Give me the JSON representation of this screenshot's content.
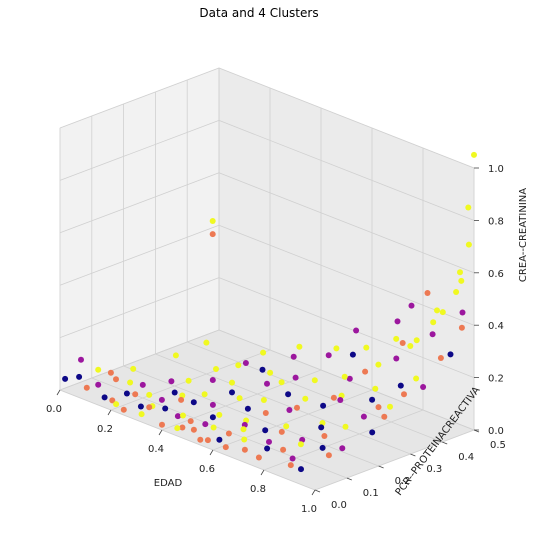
{
  "chart_data": {
    "type": "scatter",
    "projection": "3d",
    "title": "Data and 4 Clusters",
    "xlabel": "EDAD",
    "ylabel": "PCR--PROTEINACREACTIVA",
    "zlabel": "CREA--CREATININA",
    "xlim": [
      0,
      1
    ],
    "ylim": [
      0,
      0.5
    ],
    "zlim": [
      0,
      1
    ],
    "x_ticks": [
      "0.0",
      "0.2",
      "0.4",
      "0.6",
      "0.8",
      "1.0"
    ],
    "y_ticks": [
      "0.0",
      "0.1",
      "0.2",
      "0.3",
      "0.4",
      "0.5"
    ],
    "z_ticks": [
      "0.0",
      "0.2",
      "0.4",
      "0.6",
      "0.8",
      "1.0"
    ],
    "grid": true,
    "colormap": "plasma",
    "cluster_colors": [
      "#0d0887",
      "#9c179e",
      "#ed7953",
      "#f0f921"
    ],
    "series": [
      {
        "cluster": 0,
        "color": "#0d0887",
        "points": [
          [
            0.02,
            0.0,
            0.05
          ],
          [
            0.05,
            0.02,
            0.06
          ],
          [
            0.15,
            0.02,
            0.02
          ],
          [
            0.2,
            0.05,
            0.04
          ],
          [
            0.28,
            0.03,
            0.03
          ],
          [
            0.3,
            0.12,
            0.05
          ],
          [
            0.35,
            0.05,
            0.04
          ],
          [
            0.4,
            0.1,
            0.06
          ],
          [
            0.45,
            0.18,
            0.08
          ],
          [
            0.5,
            0.08,
            0.05
          ],
          [
            0.55,
            0.15,
            0.07
          ],
          [
            0.6,
            0.02,
            0.03
          ],
          [
            0.62,
            0.22,
            0.12
          ],
          [
            0.68,
            0.1,
            0.06
          ],
          [
            0.72,
            0.25,
            0.1
          ],
          [
            0.75,
            0.05,
            0.04
          ],
          [
            0.8,
            0.18,
            0.08
          ],
          [
            0.85,
            0.3,
            0.15
          ],
          [
            0.88,
            0.12,
            0.06
          ],
          [
            0.9,
            0.35,
            0.2
          ],
          [
            0.92,
            0.02,
            0.04
          ],
          [
            0.95,
            0.22,
            0.1
          ],
          [
            0.97,
            0.45,
            0.3
          ],
          [
            0.42,
            0.3,
            0.1
          ],
          [
            0.65,
            0.4,
            0.2
          ]
        ]
      },
      {
        "cluster": 1,
        "color": "#9c179e",
        "points": [
          [
            0.02,
            0.05,
            0.1
          ],
          [
            0.1,
            0.04,
            0.04
          ],
          [
            0.2,
            0.1,
            0.05
          ],
          [
            0.25,
            0.15,
            0.06
          ],
          [
            0.3,
            0.08,
            0.04
          ],
          [
            0.35,
            0.2,
            0.08
          ],
          [
            0.4,
            0.05,
            0.03
          ],
          [
            0.45,
            0.12,
            0.06
          ],
          [
            0.5,
            0.25,
            0.1
          ],
          [
            0.52,
            0.04,
            0.05
          ],
          [
            0.55,
            0.3,
            0.12
          ],
          [
            0.6,
            0.1,
            0.05
          ],
          [
            0.65,
            0.2,
            0.08
          ],
          [
            0.7,
            0.35,
            0.15
          ],
          [
            0.72,
            0.08,
            0.04
          ],
          [
            0.75,
            0.28,
            0.12
          ],
          [
            0.8,
            0.12,
            0.06
          ],
          [
            0.82,
            0.4,
            0.25
          ],
          [
            0.85,
            0.05,
            0.04
          ],
          [
            0.88,
            0.25,
            0.12
          ],
          [
            0.9,
            0.45,
            0.35
          ],
          [
            0.92,
            0.15,
            0.06
          ],
          [
            0.95,
            0.38,
            0.2
          ],
          [
            0.98,
            0.48,
            0.45
          ],
          [
            0.6,
            0.45,
            0.25
          ],
          [
            0.7,
            0.5,
            0.3
          ],
          [
            0.38,
            0.28,
            0.12
          ],
          [
            0.48,
            0.35,
            0.15
          ],
          [
            0.58,
            0.38,
            0.18
          ],
          [
            0.78,
            0.48,
            0.4
          ]
        ]
      },
      {
        "cluster": 2,
        "color": "#ed7953",
        "points": [
          [
            0.05,
            0.12,
            0.03
          ],
          [
            0.08,
            0.02,
            0.03
          ],
          [
            0.12,
            0.08,
            0.05
          ],
          [
            0.18,
            0.02,
            0.02
          ],
          [
            0.22,
            0.06,
            0.04
          ],
          [
            0.25,
            0.0,
            0.02
          ],
          [
            0.3,
            0.04,
            0.03
          ],
          [
            0.35,
            0.1,
            0.05
          ],
          [
            0.4,
            0.0,
            0.02
          ],
          [
            0.45,
            0.05,
            0.03
          ],
          [
            0.5,
            0.02,
            0.03
          ],
          [
            0.55,
            0.0,
            0.02
          ],
          [
            0.6,
            0.05,
            0.04
          ],
          [
            0.65,
            0.0,
            0.03
          ],
          [
            0.7,
            0.02,
            0.03
          ],
          [
            0.72,
            0.12,
            0.06
          ],
          [
            0.78,
            0.0,
            0.04
          ],
          [
            0.8,
            0.06,
            0.05
          ],
          [
            0.85,
            0.15,
            0.08
          ],
          [
            0.88,
            0.02,
            0.04
          ],
          [
            0.9,
            0.28,
            0.15
          ],
          [
            0.93,
            0.1,
            0.06
          ],
          [
            0.95,
            0.32,
            0.2
          ],
          [
            0.97,
            0.42,
            0.3
          ],
          [
            0.99,
            0.47,
            0.4
          ],
          [
            0.1,
            0.4,
            0.45
          ],
          [
            0.7,
            0.3,
            0.1
          ],
          [
            0.82,
            0.42,
            0.3
          ],
          [
            0.88,
            0.45,
            0.5
          ],
          [
            0.96,
            0.25,
            0.15
          ],
          [
            0.48,
            0.0,
            0.04
          ],
          [
            0.58,
            0.0,
            0.03
          ],
          [
            0.62,
            0.15,
            0.08
          ],
          [
            0.68,
            0.2,
            0.1
          ],
          [
            0.76,
            0.35,
            0.2
          ]
        ]
      },
      {
        "cluster": 3,
        "color": "#f0f921",
        "points": [
          [
            0.05,
            0.08,
            0.06
          ],
          [
            0.1,
            0.15,
            0.05
          ],
          [
            0.1,
            0.4,
            0.5
          ],
          [
            0.15,
            0.1,
            0.04
          ],
          [
            0.18,
            0.22,
            0.1
          ],
          [
            0.2,
            0.3,
            0.12
          ],
          [
            0.25,
            0.08,
            0.04
          ],
          [
            0.28,
            0.18,
            0.06
          ],
          [
            0.3,
            0.25,
            0.08
          ],
          [
            0.33,
            0.12,
            0.05
          ],
          [
            0.35,
            0.28,
            0.1
          ],
          [
            0.38,
            0.15,
            0.06
          ],
          [
            0.4,
            0.22,
            0.08
          ],
          [
            0.42,
            0.05,
            0.04
          ],
          [
            0.45,
            0.3,
            0.1
          ],
          [
            0.48,
            0.18,
            0.07
          ],
          [
            0.5,
            0.1,
            0.05
          ],
          [
            0.52,
            0.28,
            0.1
          ],
          [
            0.55,
            0.2,
            0.08
          ],
          [
            0.58,
            0.12,
            0.05
          ],
          [
            0.6,
            0.32,
            0.12
          ],
          [
            0.62,
            0.08,
            0.05
          ],
          [
            0.65,
            0.25,
            0.1
          ],
          [
            0.68,
            0.35,
            0.15
          ],
          [
            0.7,
            0.15,
            0.06
          ],
          [
            0.73,
            0.3,
            0.12
          ],
          [
            0.75,
            0.4,
            0.2
          ],
          [
            0.78,
            0.2,
            0.08
          ],
          [
            0.8,
            0.35,
            0.15
          ],
          [
            0.82,
            0.1,
            0.06
          ],
          [
            0.85,
            0.42,
            0.3
          ],
          [
            0.87,
            0.2,
            0.1
          ],
          [
            0.9,
            0.4,
            0.35
          ],
          [
            0.92,
            0.3,
            0.15
          ],
          [
            0.94,
            0.45,
            0.45
          ],
          [
            0.96,
            0.35,
            0.25
          ],
          [
            0.97,
            0.48,
            0.6
          ],
          [
            0.98,
            0.5,
            0.7
          ],
          [
            1.0,
            0.5,
            1.05
          ],
          [
            0.99,
            0.49,
            0.85
          ],
          [
            0.95,
            0.5,
            0.55
          ],
          [
            0.93,
            0.5,
            0.5
          ],
          [
            0.88,
            0.48,
            0.42
          ],
          [
            0.84,
            0.5,
            0.35
          ],
          [
            0.3,
            0.05,
            0.03
          ],
          [
            0.36,
            0.35,
            0.12
          ],
          [
            0.44,
            0.4,
            0.15
          ],
          [
            0.56,
            0.42,
            0.18
          ],
          [
            0.64,
            0.45,
            0.2
          ],
          [
            0.72,
            0.48,
            0.25
          ],
          [
            0.22,
            0.0,
            0.03
          ],
          [
            0.32,
            0.0,
            0.03
          ],
          [
            0.46,
            0.0,
            0.03
          ],
          [
            0.54,
            0.05,
            0.04
          ],
          [
            0.66,
            0.05,
            0.04
          ]
        ]
      }
    ]
  }
}
